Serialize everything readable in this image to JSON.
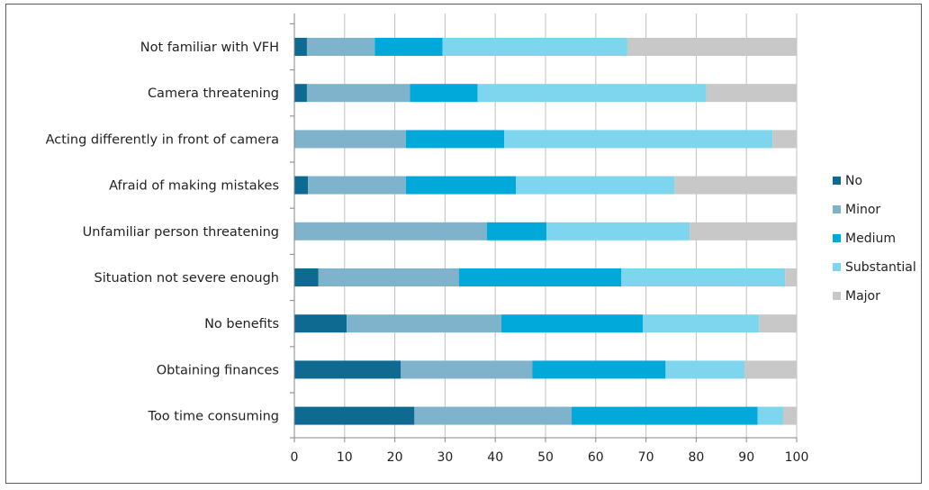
{
  "chart_data": {
    "type": "bar",
    "orientation": "horizontal",
    "stacked": true,
    "categories": [
      "Not familiar with VFH",
      "Camera threatening",
      "Acting differently in front of camera",
      "Afraid of making mistakes",
      "Unfamiliar person threatening",
      "Situation not severe enough",
      "No benefits",
      "Obtaining finances",
      "Too time consuming"
    ],
    "series": [
      {
        "name": "No",
        "color": "#0f6a91",
        "values": [
          2.5,
          2.5,
          0,
          2.7,
          0,
          4.8,
          10.4,
          21.2,
          23.9
        ]
      },
      {
        "name": "Minor",
        "color": "#7fb3cc",
        "values": [
          13.5,
          20.5,
          22.2,
          19.5,
          38.3,
          28.0,
          30.8,
          26.2,
          31.3
        ]
      },
      {
        "name": "Medium",
        "color": "#00a9d9",
        "values": [
          13.5,
          13.5,
          19.6,
          21.9,
          11.9,
          32.3,
          28.2,
          26.5,
          37.0
        ]
      },
      {
        "name": "Substantial",
        "color": "#7dd6ee",
        "values": [
          36.8,
          45.5,
          53.4,
          31.6,
          28.5,
          32.6,
          23.1,
          15.7,
          5.1
        ]
      },
      {
        "name": "Major",
        "color": "#c8c8c8",
        "values": [
          33.7,
          18.0,
          4.8,
          24.3,
          21.3,
          2.3,
          7.5,
          10.4,
          2.7
        ]
      }
    ],
    "x_ticks": [
      "0",
      "10",
      "20",
      "30",
      "40",
      "50",
      "60",
      "70",
      "80",
      "90",
      "100"
    ],
    "xlim": [
      0,
      100
    ],
    "xlabel": "",
    "ylabel": "",
    "title": "",
    "grid": "vertical",
    "grid_color": "#c0c0c0",
    "legend_position": "right"
  }
}
